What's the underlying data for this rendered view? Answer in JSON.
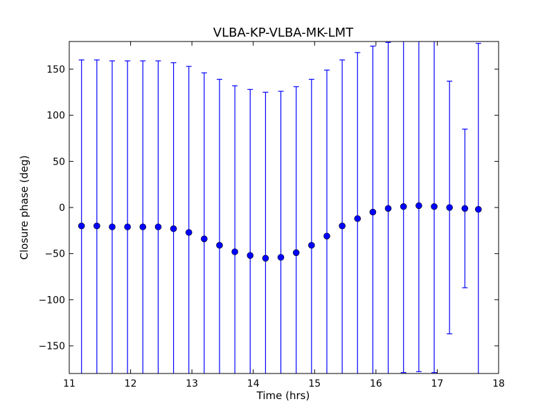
{
  "chart_data": {
    "type": "scatter",
    "title": "VLBA-KP-VLBA-MK-LMT",
    "xlabel": "Time (hrs)",
    "ylabel": "Closure phase (deg)",
    "xlim": [
      11,
      18
    ],
    "ylim": [
      -180,
      180
    ],
    "xticks": [
      11,
      12,
      13,
      14,
      15,
      16,
      17,
      18
    ],
    "yticks": [
      -150,
      -100,
      -50,
      0,
      50,
      100,
      150
    ],
    "grid": false,
    "legend": null,
    "colors": {
      "marker": "#0000ff",
      "errorbar": "#0000ff",
      "axes": "#000000"
    },
    "series": [
      {
        "x": [
          11.2,
          11.45,
          11.7,
          11.95,
          12.2,
          12.45,
          12.7,
          12.95,
          13.2,
          13.45,
          13.7,
          13.95,
          14.2,
          14.45,
          14.7,
          14.95,
          15.2,
          15.45,
          15.7,
          15.95,
          16.2,
          16.45,
          16.7,
          16.95,
          17.2,
          17.45,
          17.67
        ],
        "y": [
          -20,
          -20,
          -21,
          -21,
          -21,
          -21,
          -23,
          -27,
          -34,
          -41,
          -48,
          -52,
          -55,
          -54,
          -49,
          -41,
          -31,
          -20,
          -12,
          -5,
          -1,
          1,
          2,
          1,
          0,
          -1,
          -2
        ],
        "yerr": [
          180,
          180,
          180,
          180,
          180,
          180,
          180,
          180,
          180,
          180,
          180,
          180,
          180,
          180,
          180,
          180,
          180,
          180,
          180,
          180,
          180,
          180,
          180,
          180,
          137,
          86,
          180
        ]
      }
    ]
  }
}
